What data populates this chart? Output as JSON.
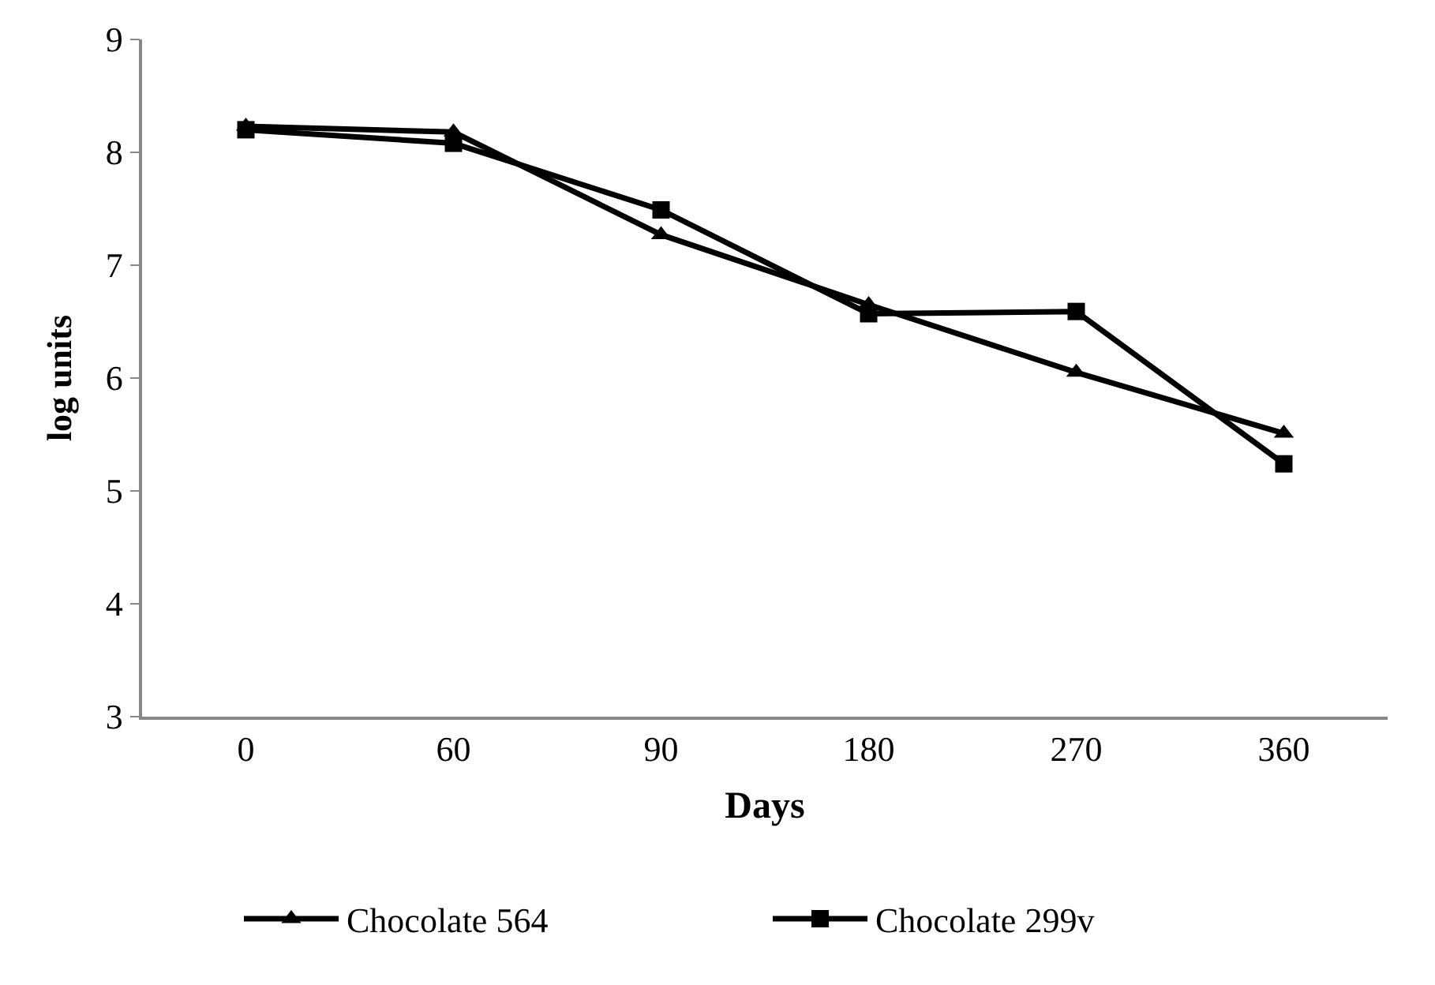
{
  "chart_data": {
    "type": "line",
    "xlabel": "Days",
    "ylabel": "log units",
    "categories": [
      "0",
      "60",
      "90",
      "180",
      "270",
      "360"
    ],
    "ylim": [
      3,
      9
    ],
    "yticks": [
      3,
      4,
      5,
      6,
      7,
      8,
      9
    ],
    "legend": "bottom",
    "line_style": "solid",
    "series": [
      {
        "name": "Chocolate 564",
        "color": "#000000",
        "marker": "triangle",
        "values": [
          8.23,
          8.18,
          7.27,
          6.65,
          6.05,
          5.51
        ]
      },
      {
        "name": "Chocolate 299v",
        "color": "#000000",
        "marker": "square",
        "values": [
          8.2,
          8.08,
          7.49,
          6.57,
          6.59,
          5.24
        ]
      }
    ]
  }
}
